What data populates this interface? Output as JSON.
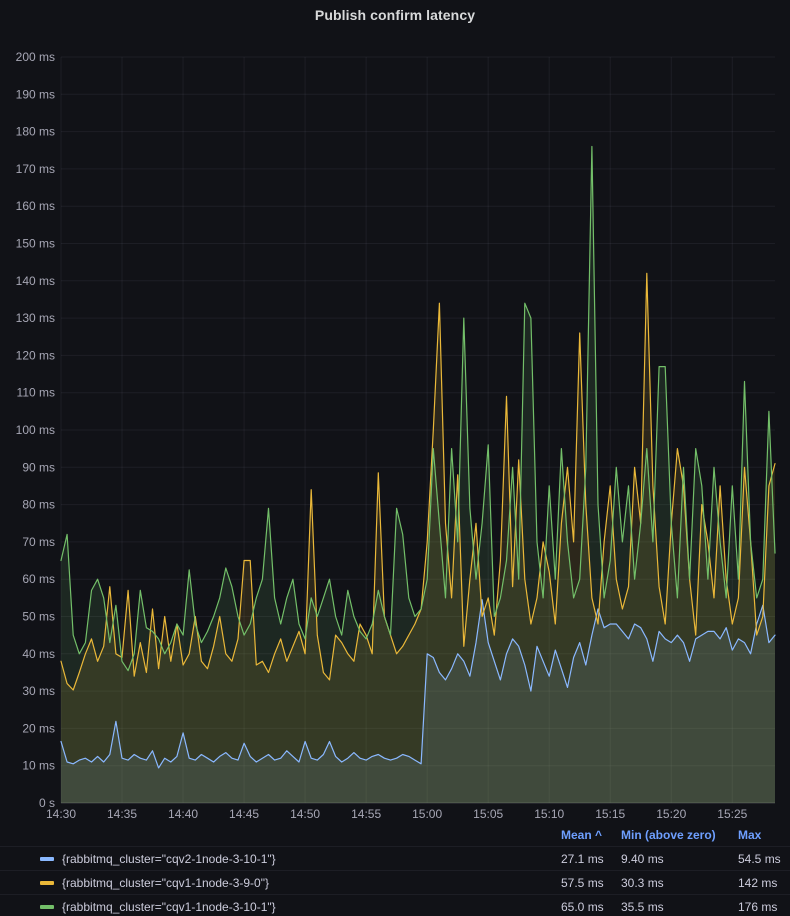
{
  "colors": {
    "background": "#111217",
    "grid": "rgba(204,204,220,0.07)",
    "axis_text": "rgba(204,204,220,0.80)",
    "title_text": "#D8D9DA",
    "legend_header": "#6E9FFF",
    "series_blue": "#8AB8FF",
    "series_yellow": "#EAB839",
    "series_green": "#73BF69"
  },
  "chart_data": {
    "type": "line",
    "title": "Publish confirm latency",
    "fill_opacity": 0.13,
    "x_axis": {
      "ticks": [
        "14:30",
        "14:35",
        "14:40",
        "14:45",
        "14:50",
        "14:55",
        "15:00",
        "15:05",
        "15:10",
        "15:15",
        "15:20",
        "15:25"
      ],
      "interval_seconds": 30,
      "points_per_tick": 10
    },
    "y_axis": {
      "ticks": [
        "0 s",
        "10 ms",
        "20 ms",
        "30 ms",
        "40 ms",
        "50 ms",
        "60 ms",
        "70 ms",
        "80 ms",
        "90 ms",
        "100 ms",
        "110 ms",
        "120 ms",
        "130 ms",
        "140 ms",
        "150 ms",
        "160 ms",
        "170 ms",
        "180 ms",
        "190 ms",
        "200 ms"
      ],
      "tick_step": 10,
      "max": 200,
      "unit": "ms",
      "grid": true
    },
    "series": [
      {
        "id": "cqv2-1node-3-10-1",
        "name": "{rabbitmq_cluster=\"cqv2-1node-3-10-1\"}",
        "color": "#8AB8FF",
        "values": [
          16.5,
          11,
          10.5,
          11.5,
          12,
          11,
          12.5,
          11,
          13,
          21.9,
          12,
          11.5,
          13,
          12,
          11.5,
          14,
          9.4,
          12,
          11,
          12.5,
          18.8,
          12,
          11.5,
          13,
          12,
          11,
          12.5,
          13.5,
          12,
          11.5,
          16,
          12.5,
          11,
          12,
          13,
          11.5,
          12,
          14,
          12.5,
          11,
          16.5,
          12,
          11.5,
          13,
          16.5,
          12.5,
          11,
          12,
          13.5,
          12,
          11.5,
          12.5,
          13,
          12,
          11.5,
          12,
          13,
          12.5,
          11.5,
          10.5,
          40,
          39,
          35,
          33,
          36,
          40,
          38,
          34,
          43,
          54.5,
          43,
          38,
          33,
          40,
          44,
          42,
          37,
          30,
          42,
          38,
          34,
          41,
          36,
          31,
          39,
          43,
          37,
          45,
          52,
          47,
          48,
          48,
          46,
          44,
          48,
          47,
          44,
          38,
          46,
          44,
          43,
          45,
          43,
          38,
          44,
          45,
          46,
          46,
          44,
          47,
          41,
          44,
          43,
          40,
          48,
          53,
          43,
          45
        ]
      },
      {
        "id": "cqv1-1node-3-9-0",
        "name": "{rabbitmq_cluster=\"cqv1-1node-3-9-0\"}",
        "color": "#EAB839",
        "values": [
          38,
          32,
          30.3,
          35,
          40,
          44,
          38,
          42,
          58,
          40,
          39,
          57,
          34,
          43,
          35,
          52,
          36,
          50,
          38,
          48,
          37,
          40,
          50,
          38,
          36,
          42,
          50,
          40,
          38,
          44,
          65,
          65,
          37,
          38,
          35,
          40,
          44,
          38,
          42,
          46,
          40,
          84,
          45,
          35,
          33,
          45,
          43,
          40,
          38,
          48,
          45,
          40,
          88.5,
          50,
          45,
          40,
          42,
          45,
          48,
          52,
          70,
          100,
          134,
          75,
          55,
          88,
          42,
          60,
          75,
          50,
          55,
          45,
          65,
          109,
          58,
          92,
          60,
          48,
          55,
          70,
          62,
          48,
          75,
          90,
          70,
          126,
          80,
          55,
          48,
          70,
          85,
          60,
          52,
          58,
          90,
          75,
          142,
          85,
          58,
          48,
          75,
          95,
          85,
          60,
          45,
          80,
          70,
          55,
          85,
          60,
          48,
          55,
          90,
          70,
          45,
          50,
          85,
          91
        ]
      },
      {
        "id": "cqv1-1node-3-10-1",
        "name": "{rabbitmq_cluster=\"cqv1-1node-3-10-1\"}",
        "color": "#73BF69",
        "values": [
          65,
          72,
          45,
          40,
          43,
          57,
          60,
          55,
          43,
          53,
          38,
          35.5,
          40,
          57,
          47,
          46,
          44,
          40,
          43,
          48,
          45,
          62.5,
          48,
          43,
          46,
          50,
          55,
          63,
          58,
          50,
          45,
          48,
          55,
          60,
          79,
          55,
          48,
          55,
          60,
          48,
          44,
          55,
          50,
          55,
          60,
          50,
          45,
          57,
          50,
          46,
          44,
          48,
          57,
          50,
          45,
          79,
          72,
          55,
          50,
          52,
          60,
          95,
          75,
          55,
          95,
          70,
          130,
          79,
          60,
          75,
          96,
          50,
          55,
          65,
          90,
          60,
          134,
          130,
          70,
          55,
          85,
          60,
          95,
          70,
          55,
          60,
          90,
          176,
          80,
          55,
          65,
          90,
          70,
          85,
          60,
          75,
          95,
          70,
          117,
          117,
          75,
          55,
          90,
          60,
          95,
          85,
          60,
          90,
          70,
          55,
          85,
          60,
          113,
          70,
          55,
          60,
          105,
          67
        ]
      }
    ],
    "legend": {
      "columns": [
        {
          "id": "mean",
          "label": "Mean ^",
          "sorted": true
        },
        {
          "id": "min",
          "label": "Min (above zero)",
          "sorted": false
        },
        {
          "id": "max",
          "label": "Max",
          "sorted": false
        }
      ],
      "rows": [
        {
          "label": "{rabbitmq_cluster=\"cqv2-1node-3-10-1\"}",
          "mean": "27.1 ms",
          "min": "9.40 ms",
          "max": "54.5 ms"
        },
        {
          "label": "{rabbitmq_cluster=\"cqv1-1node-3-9-0\"}",
          "mean": "57.5 ms",
          "min": "30.3 ms",
          "max": "142 ms"
        },
        {
          "label": "{rabbitmq_cluster=\"cqv1-1node-3-10-1\"}",
          "mean": "65.0 ms",
          "min": "35.5 ms",
          "max": "176 ms"
        }
      ]
    }
  }
}
